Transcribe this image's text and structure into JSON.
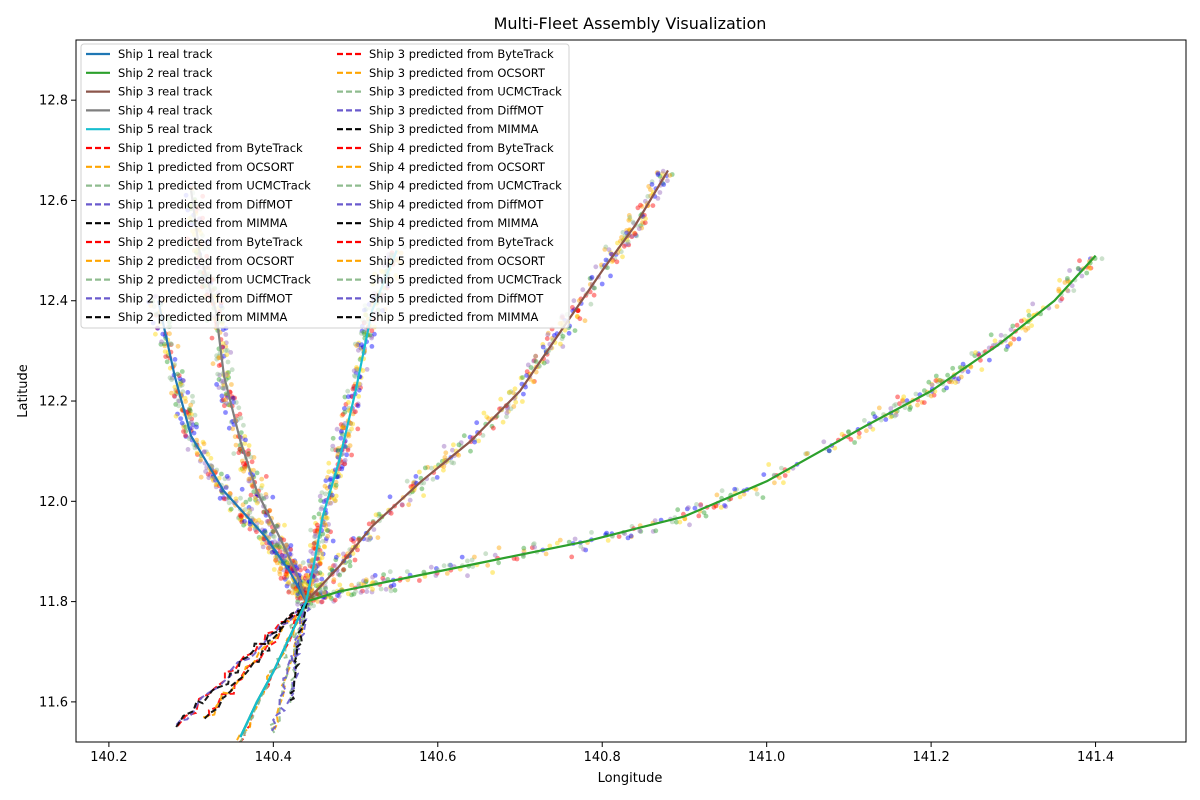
{
  "chart_data": {
    "type": "line",
    "title": "Multi-Fleet Assembly Visualization",
    "xlabel": "Longitude",
    "ylabel": "Latitude",
    "xlim": [
      140.16,
      141.51
    ],
    "ylim": [
      11.52,
      12.92
    ],
    "xticks": [
      "140.2",
      "140.4",
      "140.6",
      "140.8",
      "141.0",
      "141.2",
      "141.4"
    ],
    "yticks": [
      "11.6",
      "11.8",
      "12.0",
      "12.2",
      "12.4",
      "12.6",
      "12.8"
    ],
    "grid": false,
    "legend_position": "top-left",
    "legend_columns": 2,
    "assembly_point": [
      140.44,
      11.8
    ],
    "real_tracks": [
      {
        "name": "Ship 1 real track",
        "color": "#1f77b4",
        "points": [
          [
            140.26,
            12.4
          ],
          [
            140.28,
            12.25
          ],
          [
            140.3,
            12.13
          ],
          [
            140.34,
            12.02
          ],
          [
            140.39,
            11.93
          ],
          [
            140.42,
            11.86
          ],
          [
            140.44,
            11.8
          ],
          [
            140.42,
            11.73
          ],
          [
            140.4,
            11.66
          ],
          [
            140.38,
            11.6
          ],
          [
            140.36,
            11.53
          ]
        ]
      },
      {
        "name": "Ship 2 real track",
        "color": "#2ca02c",
        "points": [
          [
            141.4,
            12.49
          ],
          [
            141.35,
            12.4
          ],
          [
            141.28,
            12.31
          ],
          [
            141.2,
            12.22
          ],
          [
            141.12,
            12.15
          ],
          [
            141.0,
            12.04
          ],
          [
            140.9,
            11.97
          ],
          [
            140.78,
            11.92
          ],
          [
            140.66,
            11.88
          ],
          [
            140.54,
            11.84
          ],
          [
            140.48,
            11.82
          ],
          [
            140.44,
            11.8
          ],
          [
            140.42,
            11.73
          ],
          [
            140.4,
            11.66
          ],
          [
            140.38,
            11.6
          ],
          [
            140.36,
            11.53
          ]
        ]
      },
      {
        "name": "Ship 3 real track",
        "color": "#8c564b",
        "points": [
          [
            140.88,
            12.66
          ],
          [
            140.84,
            12.55
          ],
          [
            140.8,
            12.46
          ],
          [
            140.75,
            12.34
          ],
          [
            140.7,
            12.22
          ],
          [
            140.64,
            12.12
          ],
          [
            140.58,
            12.04
          ],
          [
            140.52,
            11.95
          ],
          [
            140.48,
            11.87
          ],
          [
            140.44,
            11.8
          ]
        ]
      },
      {
        "name": "Ship 4 real track",
        "color": "#7f7f7f",
        "points": [
          [
            140.3,
            12.62
          ],
          [
            140.31,
            12.5
          ],
          [
            140.33,
            12.38
          ],
          [
            140.34,
            12.25
          ],
          [
            140.36,
            12.12
          ],
          [
            140.38,
            12.02
          ],
          [
            140.41,
            11.92
          ],
          [
            140.43,
            11.85
          ],
          [
            140.44,
            11.8
          ]
        ]
      },
      {
        "name": "Ship 5 real track",
        "color": "#17becf",
        "points": [
          [
            140.55,
            12.5
          ],
          [
            140.52,
            12.38
          ],
          [
            140.5,
            12.22
          ],
          [
            140.48,
            12.08
          ],
          [
            140.46,
            11.97
          ],
          [
            140.45,
            11.88
          ],
          [
            140.44,
            11.8
          ],
          [
            140.42,
            11.73
          ],
          [
            140.4,
            11.66
          ],
          [
            140.38,
            11.6
          ],
          [
            140.36,
            11.53
          ]
        ]
      }
    ],
    "predicted_methods": [
      {
        "name": "ByteTrack",
        "color": "#ff0000"
      },
      {
        "name": "OCSORT",
        "color": "#ffa500"
      },
      {
        "name": "UCMCTrack",
        "color": "#8fbc8f"
      },
      {
        "name": "DiffMOT",
        "color": "#6a5acd"
      },
      {
        "name": "MIMMA",
        "color": "#000000"
      }
    ],
    "scatter_colors": [
      "#ff0000",
      "#ffa500",
      "#ffd700",
      "#2ca02c",
      "#0000ff",
      "#9467bd",
      "#8fbc8f"
    ]
  },
  "legend": {
    "column1": [
      {
        "label": "Ship 1 real track",
        "color": "#1f77b4",
        "style": "solid"
      },
      {
        "label": "Ship 2 real track",
        "color": "#2ca02c",
        "style": "solid"
      },
      {
        "label": "Ship 3 real track",
        "color": "#8c564b",
        "style": "solid"
      },
      {
        "label": "Ship 4 real track",
        "color": "#7f7f7f",
        "style": "solid"
      },
      {
        "label": "Ship 5 real track",
        "color": "#17becf",
        "style": "solid"
      },
      {
        "label": "Ship 1 predicted from ByteTrack",
        "color": "#ff0000",
        "style": "dashed"
      },
      {
        "label": "Ship 1 predicted from OCSORT",
        "color": "#ffa500",
        "style": "dashed"
      },
      {
        "label": "Ship 1 predicted from UCMCTrack",
        "color": "#8fbc8f",
        "style": "dashed"
      },
      {
        "label": "Ship 1 predicted from DiffMOT",
        "color": "#6a5acd",
        "style": "dashed"
      },
      {
        "label": "Ship 1 predicted from MIMMA",
        "color": "#000000",
        "style": "dashed"
      },
      {
        "label": "Ship 2 predicted from ByteTrack",
        "color": "#ff0000",
        "style": "dashed"
      },
      {
        "label": "Ship 2 predicted from OCSORT",
        "color": "#ffa500",
        "style": "dashed"
      },
      {
        "label": "Ship 2 predicted from UCMCTrack",
        "color": "#8fbc8f",
        "style": "dashed"
      },
      {
        "label": "Ship 2 predicted from DiffMOT",
        "color": "#6a5acd",
        "style": "dashed"
      },
      {
        "label": "Ship 2 predicted from MIMMA",
        "color": "#000000",
        "style": "dashed"
      }
    ],
    "column2": [
      {
        "label": "Ship 3 predicted from ByteTrack",
        "color": "#ff0000",
        "style": "dashed"
      },
      {
        "label": "Ship 3 predicted from OCSORT",
        "color": "#ffa500",
        "style": "dashed"
      },
      {
        "label": "Ship 3 predicted from UCMCTrack",
        "color": "#8fbc8f",
        "style": "dashed"
      },
      {
        "label": "Ship 3 predicted from DiffMOT",
        "color": "#6a5acd",
        "style": "dashed"
      },
      {
        "label": "Ship 3 predicted from MIMMA",
        "color": "#000000",
        "style": "dashed"
      },
      {
        "label": "Ship 4 predicted from ByteTrack",
        "color": "#ff0000",
        "style": "dashed"
      },
      {
        "label": "Ship 4 predicted from OCSORT",
        "color": "#ffa500",
        "style": "dashed"
      },
      {
        "label": "Ship 4 predicted from UCMCTrack",
        "color": "#8fbc8f",
        "style": "dashed"
      },
      {
        "label": "Ship 4 predicted from DiffMOT",
        "color": "#6a5acd",
        "style": "dashed"
      },
      {
        "label": "Ship 4 predicted from MIMMA",
        "color": "#000000",
        "style": "dashed"
      },
      {
        "label": "Ship 5 predicted from ByteTrack",
        "color": "#ff0000",
        "style": "dashed"
      },
      {
        "label": "Ship 5 predicted from OCSORT",
        "color": "#ffa500",
        "style": "dashed"
      },
      {
        "label": "Ship 5 predicted from UCMCTrack",
        "color": "#8fbc8f",
        "style": "dashed"
      },
      {
        "label": "Ship 5 predicted from DiffMOT",
        "color": "#6a5acd",
        "style": "dashed"
      },
      {
        "label": "Ship 5 predicted from MIMMA",
        "color": "#000000",
        "style": "dashed"
      }
    ]
  }
}
